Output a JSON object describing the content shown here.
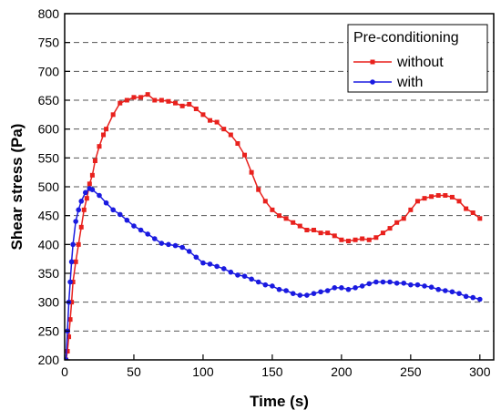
{
  "chart_data": {
    "type": "line",
    "xlabel": "Time (s)",
    "ylabel": "Shear stress (Pa)",
    "xlim": [
      0,
      310
    ],
    "ylim": [
      200,
      800
    ],
    "xticks": [
      0,
      50,
      100,
      150,
      200,
      250,
      300
    ],
    "yticks": [
      200,
      250,
      300,
      350,
      400,
      450,
      500,
      550,
      600,
      650,
      700,
      750,
      800
    ],
    "grid": "horizontal-dashed",
    "legend": {
      "title": "Pre-conditioning",
      "position": "top-right"
    },
    "series": [
      {
        "name": "without",
        "color": "#e8211d",
        "marker": "square",
        "x": [
          1,
          2,
          3,
          4,
          5,
          6,
          8,
          10,
          12,
          14,
          16,
          18,
          20,
          22,
          25,
          28,
          30,
          35,
          40,
          45,
          50,
          55,
          60,
          65,
          70,
          75,
          80,
          85,
          90,
          95,
          100,
          105,
          110,
          115,
          120,
          125,
          130,
          135,
          140,
          145,
          150,
          155,
          160,
          165,
          170,
          175,
          180,
          185,
          190,
          195,
          200,
          205,
          210,
          215,
          220,
          225,
          230,
          235,
          240,
          245,
          250,
          255,
          260,
          265,
          270,
          275,
          280,
          285,
          290,
          295,
          300
        ],
        "y": [
          200,
          215,
          240,
          270,
          300,
          335,
          370,
          400,
          430,
          460,
          480,
          505,
          520,
          545,
          570,
          590,
          600,
          625,
          645,
          650,
          655,
          655,
          660,
          650,
          650,
          648,
          645,
          640,
          643,
          635,
          625,
          615,
          612,
          600,
          590,
          575,
          555,
          525,
          495,
          475,
          460,
          450,
          445,
          438,
          432,
          425,
          425,
          420,
          420,
          415,
          408,
          406,
          408,
          410,
          408,
          412,
          420,
          428,
          438,
          445,
          460,
          475,
          480,
          483,
          485,
          485,
          482,
          475,
          462,
          455,
          445
        ]
      },
      {
        "name": "with",
        "color": "#1a1ae0",
        "marker": "circle",
        "x": [
          1,
          2,
          3,
          4,
          5,
          6,
          8,
          10,
          12,
          15,
          18,
          20,
          25,
          30,
          35,
          40,
          45,
          50,
          55,
          60,
          65,
          70,
          75,
          80,
          85,
          90,
          95,
          100,
          105,
          110,
          115,
          120,
          125,
          130,
          135,
          140,
          145,
          150,
          155,
          160,
          165,
          170,
          175,
          180,
          185,
          190,
          195,
          200,
          205,
          210,
          215,
          220,
          225,
          230,
          235,
          240,
          245,
          250,
          255,
          260,
          265,
          270,
          275,
          280,
          285,
          290,
          295,
          300
        ],
        "y": [
          200,
          250,
          300,
          335,
          370,
          400,
          440,
          460,
          475,
          490,
          497,
          495,
          485,
          472,
          460,
          452,
          442,
          432,
          425,
          418,
          410,
          402,
          400,
          398,
          395,
          388,
          378,
          368,
          366,
          362,
          358,
          352,
          347,
          345,
          340,
          335,
          330,
          328,
          322,
          320,
          315,
          312,
          312,
          315,
          318,
          320,
          325,
          325,
          322,
          325,
          328,
          332,
          335,
          335,
          335,
          333,
          333,
          330,
          330,
          328,
          326,
          322,
          320,
          318,
          315,
          310,
          308,
          305
        ]
      }
    ]
  }
}
